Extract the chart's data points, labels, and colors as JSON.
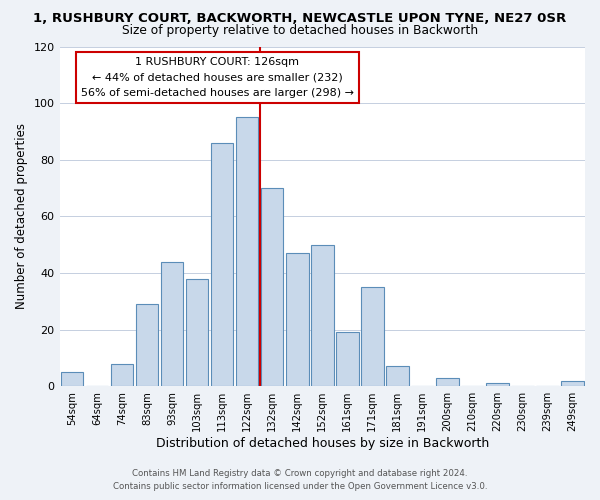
{
  "title_line1": "1, RUSHBURY COURT, BACKWORTH, NEWCASTLE UPON TYNE, NE27 0SR",
  "title_line2": "Size of property relative to detached houses in Backworth",
  "xlabel": "Distribution of detached houses by size in Backworth",
  "ylabel": "Number of detached properties",
  "bar_labels": [
    "54sqm",
    "64sqm",
    "74sqm",
    "83sqm",
    "93sqm",
    "103sqm",
    "113sqm",
    "122sqm",
    "132sqm",
    "142sqm",
    "152sqm",
    "161sqm",
    "171sqm",
    "181sqm",
    "191sqm",
    "200sqm",
    "210sqm",
    "220sqm",
    "230sqm",
    "239sqm",
    "249sqm"
  ],
  "bar_values": [
    5,
    0,
    8,
    29,
    44,
    38,
    86,
    95,
    70,
    47,
    50,
    19,
    35,
    7,
    0,
    3,
    0,
    1,
    0,
    0,
    2
  ],
  "bar_color": "#c8d8ea",
  "bar_edgecolor": "#5b8db8",
  "vline_index": 7.5,
  "marker_label": "1 RUSHBURY COURT: 126sqm",
  "annotation_line1": "← 44% of detached houses are smaller (232)",
  "annotation_line2": "56% of semi-detached houses are larger (298) →",
  "vline_color": "#cc0000",
  "annotation_box_edgecolor": "#cc0000",
  "ylim": [
    0,
    120
  ],
  "yticks": [
    0,
    20,
    40,
    60,
    80,
    100,
    120
  ],
  "footer_line1": "Contains HM Land Registry data © Crown copyright and database right 2024.",
  "footer_line2": "Contains public sector information licensed under the Open Government Licence v3.0.",
  "bg_color": "#eef2f7",
  "plot_bg_color": "#ffffff",
  "grid_color": "#c5cfe0"
}
